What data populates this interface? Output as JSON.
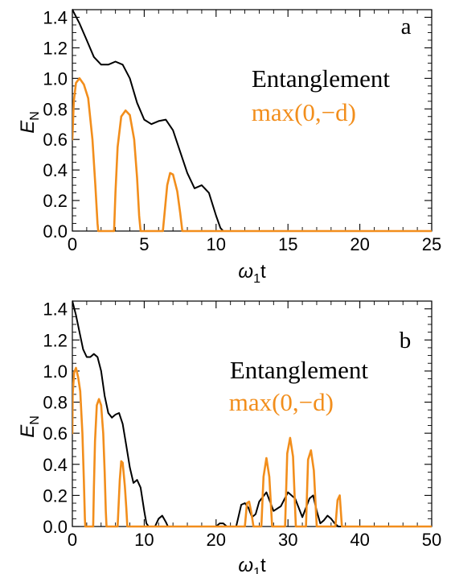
{
  "colors": {
    "entanglement": "#000000",
    "max_d": "#f28e1c"
  },
  "chart_data": [
    {
      "type": "line",
      "panel_label": "a",
      "xlabel": {
        "main": "ω",
        "sub": "1",
        "rest": "t"
      },
      "ylabel": {
        "main": "E",
        "sub": "N"
      },
      "xlim": [
        0,
        25
      ],
      "ylim": [
        0,
        1.45
      ],
      "xticks": [
        0,
        5,
        10,
        15,
        20,
        25
      ],
      "xtick_labels": [
        "0",
        "5",
        "10",
        "15",
        "20",
        "25"
      ],
      "yticks": [
        0,
        0.2,
        0.4,
        0.6,
        0.8,
        1.0,
        1.2,
        1.4
      ],
      "ytick_labels": [
        "0.0",
        "0.2",
        "0.4",
        "0.6",
        "0.8",
        "1.0",
        "1.2",
        "1.4"
      ],
      "grid": false,
      "legend_position": "right, upper-middle",
      "series": [
        {
          "name": "Entanglement",
          "color": "#000000",
          "x": [
            0,
            0.5,
            1.0,
            1.5,
            2.0,
            2.5,
            3.0,
            3.5,
            4.0,
            4.5,
            5.0,
            5.5,
            6.0,
            6.5,
            7.0,
            7.5,
            8.0,
            8.5,
            9.0,
            9.5,
            10.0,
            10.3,
            10.5,
            25
          ],
          "y": [
            1.45,
            1.36,
            1.25,
            1.14,
            1.09,
            1.09,
            1.11,
            1.09,
            1.0,
            0.84,
            0.73,
            0.7,
            0.72,
            0.73,
            0.66,
            0.52,
            0.38,
            0.28,
            0.3,
            0.25,
            0.1,
            0.02,
            0,
            0
          ]
        },
        {
          "name": "max(0,−d)",
          "color": "#f28e1c",
          "x": [
            0,
            0.1,
            0.25,
            0.5,
            0.8,
            1.1,
            1.4,
            1.6,
            1.75,
            1.8,
            2.9,
            3.0,
            3.15,
            3.4,
            3.7,
            4.0,
            4.3,
            4.5,
            4.65,
            4.75,
            6.3,
            6.4,
            6.6,
            6.8,
            7.0,
            7.3,
            7.5,
            7.65,
            25
          ],
          "y": [
            0.6,
            0.85,
            0.97,
            1.0,
            0.96,
            0.87,
            0.6,
            0.3,
            0.05,
            0,
            0,
            0.25,
            0.55,
            0.75,
            0.79,
            0.76,
            0.6,
            0.35,
            0.1,
            0,
            0,
            0.1,
            0.3,
            0.38,
            0.37,
            0.26,
            0.12,
            0,
            0
          ]
        }
      ]
    },
    {
      "type": "line",
      "panel_label": "b",
      "xlabel": {
        "main": "ω",
        "sub": "1",
        "rest": "t"
      },
      "ylabel": {
        "main": "E",
        "sub": "N"
      },
      "xlim": [
        0,
        50
      ],
      "ylim": [
        0,
        1.45
      ],
      "xticks": [
        0,
        10,
        20,
        30,
        40,
        50
      ],
      "xtick_labels": [
        "0",
        "10",
        "20",
        "30",
        "40",
        "50"
      ],
      "yticks": [
        0,
        0.2,
        0.4,
        0.6,
        0.8,
        1.0,
        1.2,
        1.4
      ],
      "ytick_labels": [
        "0.0",
        "0.2",
        "0.4",
        "0.6",
        "0.8",
        "1.0",
        "1.2",
        "1.4"
      ],
      "grid": false,
      "legend_position": "right, upper-middle",
      "series": [
        {
          "name": "Entanglement",
          "color": "#000000",
          "x": [
            0,
            0.5,
            1,
            1.5,
            2,
            2.5,
            3,
            3.5,
            4,
            4.5,
            5,
            5.5,
            6,
            6.5,
            7,
            7.5,
            8,
            8.5,
            9,
            9.5,
            10,
            10.3,
            10.6,
            11.5,
            12,
            12.5,
            13,
            13.3,
            20,
            20.5,
            21,
            21.5,
            22.8,
            23.5,
            24,
            24.5,
            25,
            25.5,
            26,
            27,
            28,
            29,
            30,
            31,
            32,
            33,
            33.5,
            34,
            34.5,
            35,
            35.5,
            36,
            36.5,
            37,
            50
          ],
          "y": [
            1.45,
            1.36,
            1.25,
            1.14,
            1.09,
            1.09,
            1.11,
            1.09,
            1.0,
            0.84,
            0.73,
            0.7,
            0.72,
            0.73,
            0.66,
            0.52,
            0.38,
            0.28,
            0.3,
            0.25,
            0.1,
            0.02,
            0,
            0,
            0.05,
            0.07,
            0.03,
            0,
            0,
            0.02,
            0.02,
            0,
            0,
            0.14,
            0.15,
            0.12,
            0.06,
            0.08,
            0.16,
            0.22,
            0.1,
            0.13,
            0.22,
            0.18,
            0.06,
            0.18,
            0.2,
            0.1,
            0.02,
            0.04,
            0.07,
            0.05,
            0.02,
            0,
            0
          ]
        },
        {
          "name": "max(0,−d)",
          "color": "#f28e1c",
          "x": [
            0,
            0.05,
            0.25,
            0.5,
            0.8,
            1.1,
            1.4,
            1.6,
            1.75,
            1.8,
            2.9,
            3.0,
            3.15,
            3.4,
            3.7,
            4.0,
            4.3,
            4.5,
            4.65,
            4.75,
            6.3,
            6.4,
            6.6,
            6.8,
            7.0,
            7.3,
            7.5,
            7.65,
            24,
            24.3,
            24.6,
            24.9,
            25.2,
            26.3,
            26.6,
            27.0,
            27.4,
            27.8,
            29.6,
            29.9,
            30.3,
            30.7,
            31.1,
            32.5,
            32.8,
            33.2,
            33.6,
            34.0,
            36.6,
            36.9,
            37.2,
            37.5,
            50
          ],
          "y": [
            0.6,
            0.85,
            0.99,
            1.02,
            0.96,
            0.87,
            0.6,
            0.3,
            0.05,
            0,
            0,
            0.25,
            0.55,
            0.78,
            0.82,
            0.78,
            0.6,
            0.35,
            0.1,
            0,
            0,
            0.1,
            0.3,
            0.42,
            0.41,
            0.26,
            0.12,
            0,
            0,
            0.15,
            0.16,
            0.09,
            0,
            0,
            0.32,
            0.44,
            0.32,
            0,
            0,
            0.47,
            0.57,
            0.45,
            0,
            0,
            0.43,
            0.49,
            0.36,
            0,
            0,
            0.17,
            0.2,
            0,
            0
          ]
        }
      ]
    }
  ]
}
